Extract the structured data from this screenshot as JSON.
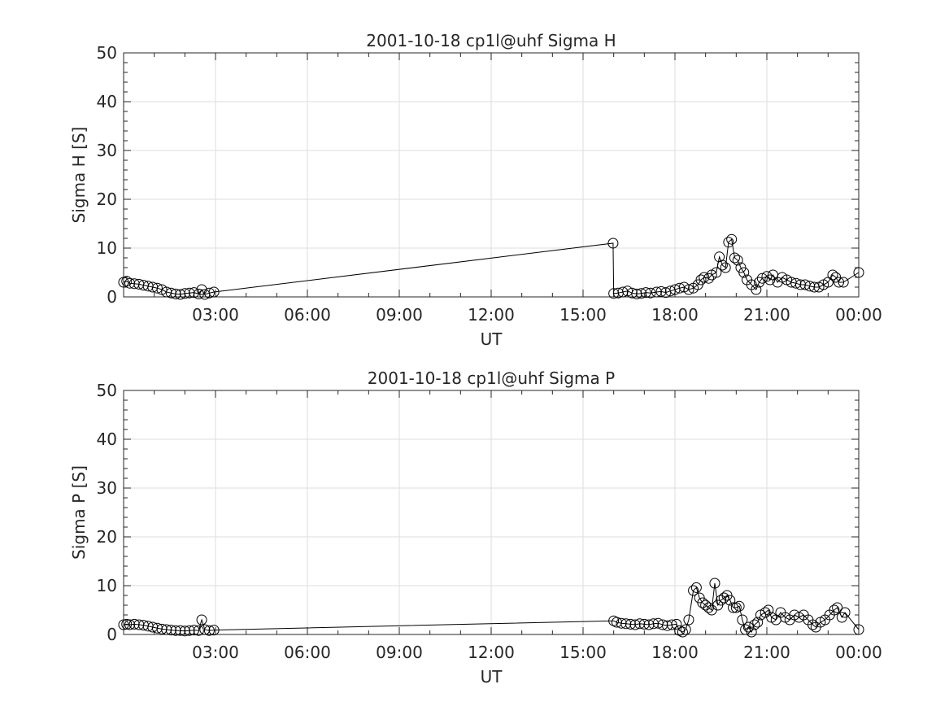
{
  "chart_data": [
    {
      "type": "line",
      "title": "2001-10-18  cp1l@uhf Sigma H",
      "xlabel": "UT",
      "ylabel": "Sigma H [S]",
      "xlim": [
        0,
        24
      ],
      "ylim": [
        0,
        50
      ],
      "grid": true,
      "marker": "open-circle",
      "color": "#000000",
      "xticks": [
        3,
        6,
        9,
        12,
        15,
        18,
        21,
        24
      ],
      "xtick_labels": [
        "03:00",
        "06:00",
        "09:00",
        "12:00",
        "15:00",
        "18:00",
        "21:00",
        "00:00"
      ],
      "yticks": [
        0,
        10,
        20,
        30,
        40,
        50
      ],
      "ytick_labels": [
        "0",
        "10",
        "20",
        "30",
        "40",
        "50"
      ],
      "x": [
        0.0,
        0.1,
        0.2,
        0.35,
        0.5,
        0.65,
        0.8,
        0.95,
        1.1,
        1.25,
        1.4,
        1.55,
        1.7,
        1.85,
        2.0,
        2.15,
        2.3,
        2.45,
        2.55,
        2.65,
        2.8,
        2.95,
        15.98,
        16.0,
        16.15,
        16.3,
        16.45,
        16.6,
        16.75,
        16.9,
        17.05,
        17.2,
        17.4,
        17.55,
        17.7,
        17.85,
        18.0,
        18.15,
        18.3,
        18.45,
        18.6,
        18.75,
        18.85,
        18.95,
        19.1,
        19.2,
        19.35,
        19.45,
        19.55,
        19.65,
        19.75,
        19.85,
        19.95,
        20.05,
        20.15,
        20.25,
        20.35,
        20.5,
        20.65,
        20.75,
        20.85,
        21.0,
        21.1,
        21.2,
        21.35,
        21.5,
        21.65,
        21.8,
        21.95,
        22.1,
        22.25,
        22.4,
        22.55,
        22.7,
        22.85,
        23.0,
        23.15,
        23.25,
        23.35,
        23.5,
        24.0
      ],
      "y": [
        3.0,
        3.2,
        2.8,
        2.7,
        2.6,
        2.4,
        2.2,
        2.0,
        1.8,
        1.5,
        1.0,
        0.8,
        0.6,
        0.5,
        0.7,
        0.8,
        0.9,
        0.6,
        1.5,
        0.5,
        0.8,
        1.0,
        11.0,
        0.7,
        0.8,
        1.0,
        1.2,
        0.8,
        0.6,
        0.7,
        0.9,
        0.8,
        1.0,
        1.1,
        0.9,
        1.2,
        1.5,
        1.8,
        2.0,
        1.5,
        1.8,
        2.5,
        3.5,
        4.0,
        3.8,
        4.5,
        5.0,
        8.2,
        6.5,
        6.0,
        11.2,
        11.8,
        8.0,
        7.5,
        6.0,
        5.0,
        3.5,
        2.5,
        1.5,
        3.0,
        3.8,
        4.2,
        3.5,
        4.5,
        3.0,
        4.0,
        3.5,
        3.0,
        2.8,
        2.5,
        2.5,
        2.2,
        2.0,
        2.0,
        2.5,
        3.0,
        4.5,
        4.0,
        3.0,
        3.0,
        5.0
      ]
    },
    {
      "type": "line",
      "title": "2001-10-18  cp1l@uhf Sigma P",
      "xlabel": "UT",
      "ylabel": "Sigma P [S]",
      "xlim": [
        0,
        24
      ],
      "ylim": [
        0,
        50
      ],
      "grid": true,
      "marker": "open-circle",
      "color": "#000000",
      "xticks": [
        3,
        6,
        9,
        12,
        15,
        18,
        21,
        24
      ],
      "xtick_labels": [
        "03:00",
        "06:00",
        "09:00",
        "12:00",
        "15:00",
        "18:00",
        "21:00",
        "00:00"
      ],
      "yticks": [
        0,
        10,
        20,
        30,
        40,
        50
      ],
      "ytick_labels": [
        "0",
        "10",
        "20",
        "30",
        "40",
        "50"
      ],
      "x": [
        0.0,
        0.1,
        0.2,
        0.35,
        0.5,
        0.65,
        0.8,
        0.95,
        1.1,
        1.25,
        1.4,
        1.55,
        1.7,
        1.85,
        2.0,
        2.15,
        2.3,
        2.45,
        2.55,
        2.65,
        2.8,
        2.95,
        16.0,
        16.1,
        16.25,
        16.4,
        16.55,
        16.7,
        16.85,
        17.0,
        17.15,
        17.3,
        17.45,
        17.6,
        17.75,
        17.9,
        18.05,
        18.15,
        18.25,
        18.35,
        18.45,
        18.6,
        18.7,
        18.8,
        18.9,
        19.0,
        19.1,
        19.2,
        19.3,
        19.4,
        19.5,
        19.6,
        19.7,
        19.8,
        19.9,
        20.0,
        20.1,
        20.2,
        20.3,
        20.4,
        20.5,
        20.6,
        20.7,
        20.8,
        20.95,
        21.05,
        21.15,
        21.3,
        21.45,
        21.6,
        21.75,
        21.9,
        22.05,
        22.2,
        22.35,
        22.5,
        22.6,
        22.75,
        22.9,
        23.05,
        23.2,
        23.3,
        23.45,
        23.55,
        24.0
      ],
      "y": [
        2.0,
        2.1,
        2.0,
        2.1,
        2.0,
        1.9,
        1.7,
        1.5,
        1.3,
        1.1,
        1.0,
        0.9,
        0.8,
        0.8,
        0.7,
        0.8,
        0.9,
        0.8,
        3.0,
        1.0,
        0.8,
        0.9,
        2.8,
        2.5,
        2.3,
        2.2,
        2.1,
        2.0,
        2.2,
        2.1,
        2.0,
        2.2,
        2.3,
        2.0,
        1.8,
        2.0,
        2.1,
        0.8,
        0.5,
        1.0,
        3.0,
        9.0,
        9.6,
        7.5,
        6.5,
        6.0,
        5.5,
        5.0,
        10.5,
        6.0,
        7.0,
        7.5,
        8.0,
        7.0,
        5.5,
        5.5,
        5.8,
        3.0,
        1.0,
        1.5,
        0.5,
        2.0,
        2.5,
        4.0,
        4.5,
        5.0,
        3.5,
        3.0,
        4.5,
        3.5,
        3.0,
        4.0,
        3.5,
        4.0,
        3.0,
        2.0,
        1.5,
        2.5,
        3.0,
        4.0,
        5.0,
        5.5,
        3.5,
        4.5,
        1.0
      ]
    }
  ]
}
